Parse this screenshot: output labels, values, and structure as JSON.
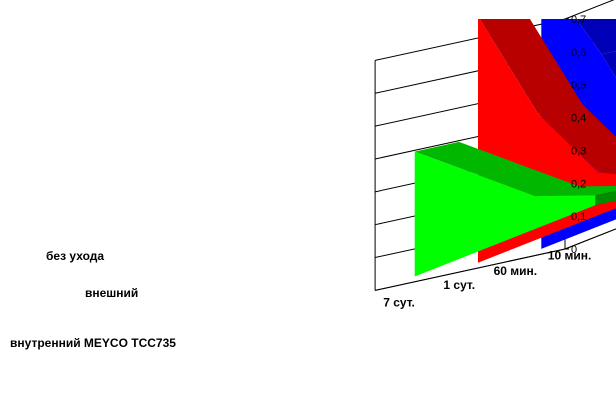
{
  "chart_data": {
    "type": "area",
    "title": "",
    "xlabel": "",
    "ylabel": "",
    "categories": [
      "10 мин.",
      "60 мин.",
      "1 сут.",
      "7 сут."
    ],
    "ylim": [
      0,
      0.7
    ],
    "yticks": [
      "0",
      "0,1",
      "0,2",
      "0,3",
      "0,4",
      "0,5",
      "0,6",
      "0,7"
    ],
    "grid": true,
    "series": [
      {
        "name": "без ухода",
        "values": [
          0.04,
          0.15,
          0.52,
          0.85
        ],
        "color": "#0000ff"
      },
      {
        "name": "внешний",
        "values": [
          0.04,
          0.13,
          0.38,
          0.75
        ],
        "color": "#ff0000"
      },
      {
        "name": "внутренний MEYCO TCC735",
        "values": [
          0.03,
          0.1,
          0.24,
          0.38
        ],
        "color": "#00ff00"
      }
    ]
  }
}
